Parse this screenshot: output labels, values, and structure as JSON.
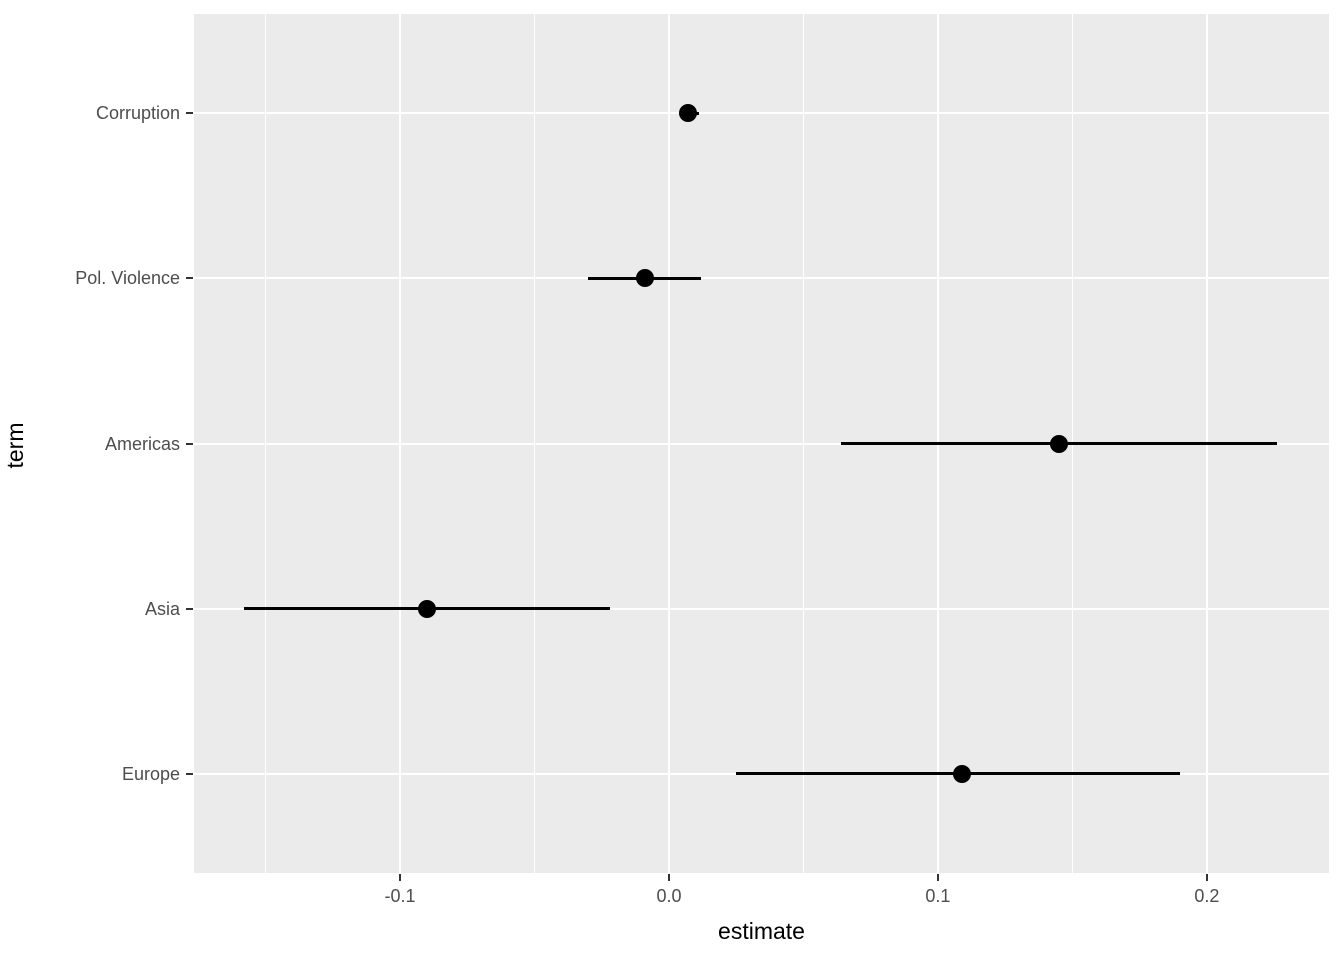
{
  "chart_data": {
    "type": "scatter",
    "subtype": "dot-whisker-pointrange",
    "orientation": "horizontal",
    "title": "",
    "xlabel": "estimate",
    "ylabel": "term",
    "legend": false,
    "grid": true,
    "xlim": [
      -0.177,
      0.245
    ],
    "categories_top_to_bottom": [
      "Corruption",
      "Pol. Violence",
      "Americas",
      "Asia",
      "Europe"
    ],
    "points": [
      {
        "term": "Corruption",
        "estimate": 0.007,
        "conf_low": 0.004,
        "conf_high": 0.011
      },
      {
        "term": "Pol. Violence",
        "estimate": -0.009,
        "conf_low": -0.03,
        "conf_high": 0.012
      },
      {
        "term": "Americas",
        "estimate": 0.145,
        "conf_low": 0.064,
        "conf_high": 0.226
      },
      {
        "term": "Asia",
        "estimate": -0.09,
        "conf_low": -0.158,
        "conf_high": -0.022
      },
      {
        "term": "Europe",
        "estimate": 0.109,
        "conf_low": 0.025,
        "conf_high": 0.19
      }
    ],
    "x_major_ticks": [
      {
        "value": -0.1,
        "label": "-0.1"
      },
      {
        "value": 0.0,
        "label": "0.0"
      },
      {
        "value": 0.1,
        "label": "0.1"
      },
      {
        "value": 0.2,
        "label": "0.2"
      }
    ],
    "x_minor_ticks": [
      -0.15,
      -0.05,
      0.05,
      0.15
    ],
    "colors": {
      "panel_background": "#EBEBEB",
      "grid_major": "#FFFFFF",
      "grid_minor": "#FFFFFF",
      "point": "#000000",
      "ci_bar": "#000000",
      "axis_text": "#4D4D4D",
      "axis_title": "#000000",
      "tick_mark": "#333333"
    }
  }
}
